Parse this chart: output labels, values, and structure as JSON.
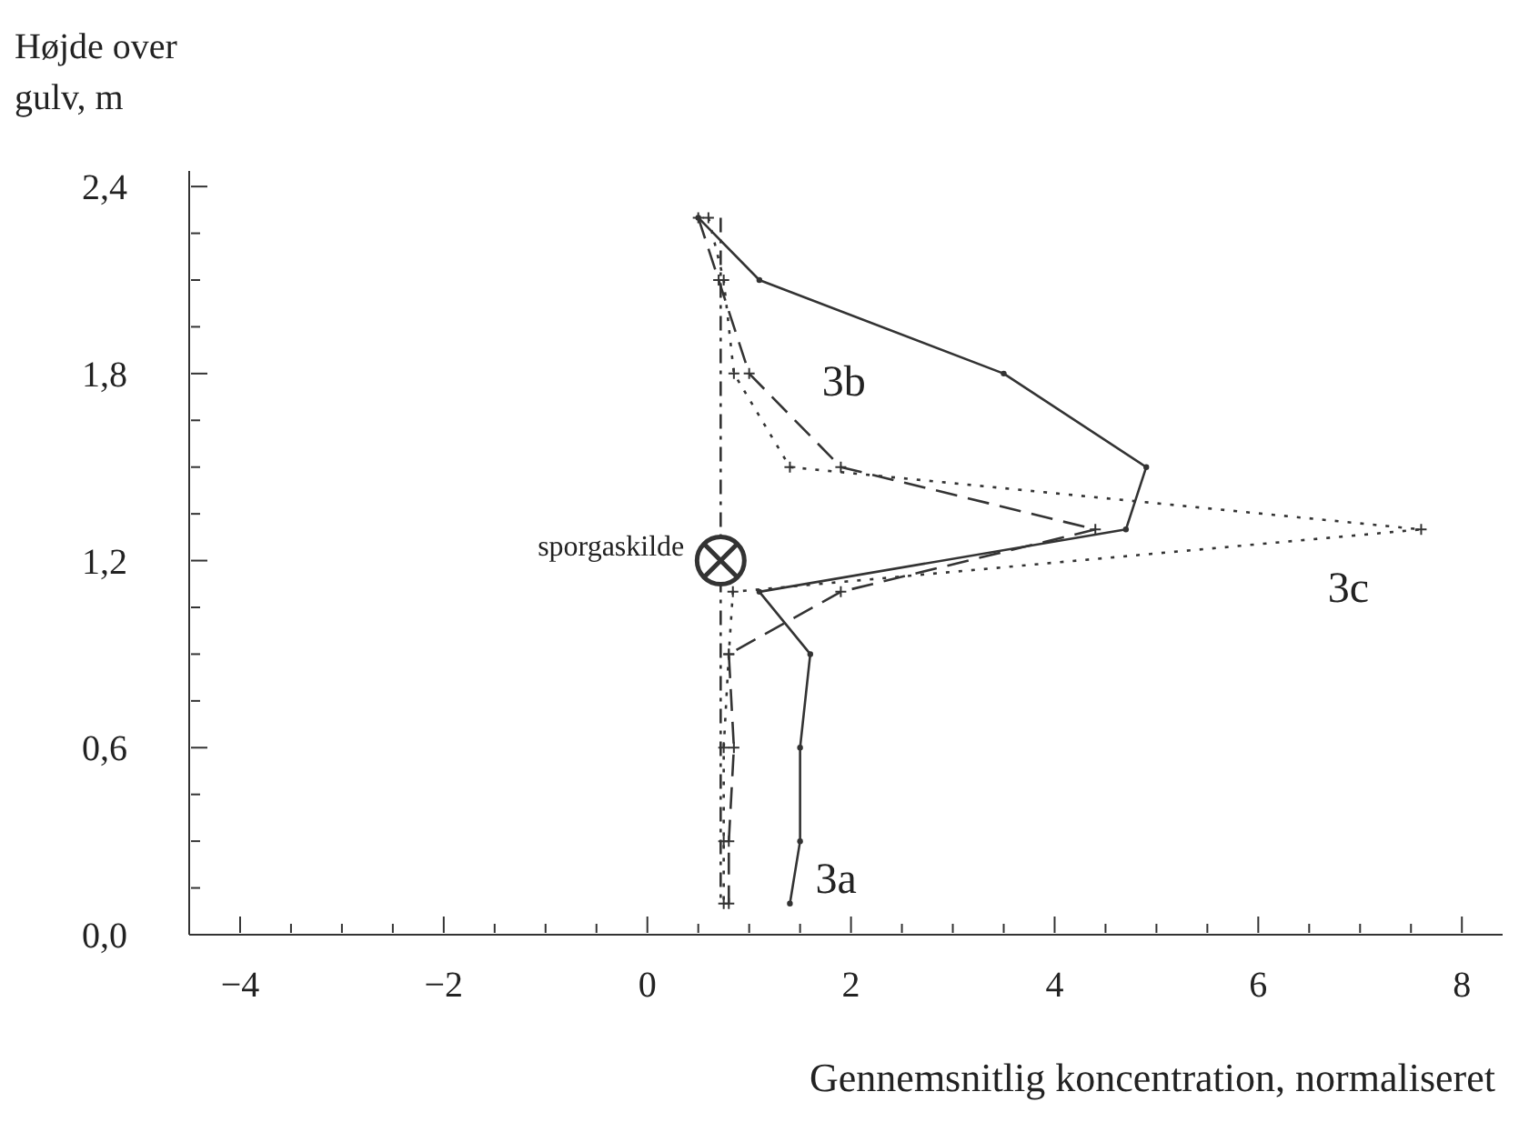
{
  "chart_data": {
    "type": "line",
    "xlabel": "Gennemsnitlig koncentration, normaliseret",
    "ylabel": "Højde over gulv, m",
    "xlim": [
      -4.5,
      8.4
    ],
    "ylim": [
      0,
      2.45
    ],
    "xticks": [
      {
        "value": -4,
        "label": "−4"
      },
      {
        "value": -3.5,
        "label": null
      },
      {
        "value": -3,
        "label": null
      },
      {
        "value": -2.5,
        "label": null
      },
      {
        "value": -2,
        "label": "−2"
      },
      {
        "value": -1.5,
        "label": null
      },
      {
        "value": -1,
        "label": null
      },
      {
        "value": -0.5,
        "label": null
      },
      0,
      {
        "value": 0.5,
        "label": null
      },
      {
        "value": 1,
        "label": null
      },
      {
        "value": 1.5,
        "label": null
      },
      2,
      {
        "value": 2.5,
        "label": null
      },
      {
        "value": 3,
        "label": null
      },
      {
        "value": 3.5,
        "label": null
      },
      4,
      {
        "value": 4.5,
        "label": null
      },
      {
        "value": 5,
        "label": null
      },
      {
        "value": 5.5,
        "label": null
      },
      6,
      {
        "value": 6.5,
        "label": null
      },
      {
        "value": 7,
        "label": null
      },
      {
        "value": 7.5,
        "label": null
      },
      8
    ],
    "yticks": [
      {
        "value": 0,
        "label": "0,0"
      },
      {
        "value": 0.15,
        "label": null
      },
      {
        "value": 0.3,
        "label": null
      },
      {
        "value": 0.45,
        "label": null
      },
      {
        "value": 0.6,
        "label": "0,6"
      },
      {
        "value": 0.75,
        "label": null
      },
      {
        "value": 0.9,
        "label": null
      },
      {
        "value": 1.05,
        "label": null
      },
      {
        "value": 1.2,
        "label": "1,2"
      },
      {
        "value": 1.35,
        "label": null
      },
      {
        "value": 1.5,
        "label": null
      },
      {
        "value": 1.65,
        "label": null
      },
      {
        "value": 1.8,
        "label": "1,8"
      },
      {
        "value": 1.95,
        "label": null
      },
      {
        "value": 2.1,
        "label": null
      },
      {
        "value": 2.25,
        "label": null
      },
      {
        "value": 2.4,
        "label": "2,4"
      }
    ],
    "annotations": [
      {
        "text": "sporgaskilde",
        "x": 0.72,
        "y": 1.2
      }
    ],
    "series": [
      {
        "name": "3a",
        "color": "#333333",
        "line_style": "solid",
        "marker": "circle",
        "x": [
          0.5,
          1.1,
          3.5,
          4.9,
          4.7,
          1.1,
          1.6,
          1.5,
          1.5,
          1.4
        ],
        "values": [
          2.3,
          2.1,
          1.8,
          1.5,
          1.3,
          1.1,
          0.9,
          0.6,
          0.3,
          0.1
        ]
      },
      {
        "name": "3b",
        "color": "#333333",
        "line_style": "dashed",
        "marker": "cross",
        "x": [
          0.5,
          0.7,
          1.0,
          1.9,
          4.4,
          1.9,
          0.8,
          0.85,
          0.8,
          0.8
        ],
        "values": [
          2.3,
          2.1,
          1.8,
          1.5,
          1.3,
          1.1,
          0.9,
          0.6,
          0.3,
          0.1
        ]
      },
      {
        "name": "3c",
        "color": "#333333",
        "line_style": "dotted",
        "marker": "cross",
        "x": [
          0.6,
          0.75,
          0.85,
          1.4,
          7.6,
          0.84,
          0.8,
          0.75,
          0.75,
          0.75
        ],
        "values": [
          2.3,
          2.1,
          1.8,
          1.5,
          1.3,
          1.1,
          0.9,
          0.6,
          0.3,
          0.1
        ]
      },
      {
        "color": "#333333",
        "line_style": "dashdot",
        "marker": "none",
        "x": [
          0.72,
          0.72
        ],
        "values": [
          2.3,
          0.1
        ]
      }
    ]
  }
}
